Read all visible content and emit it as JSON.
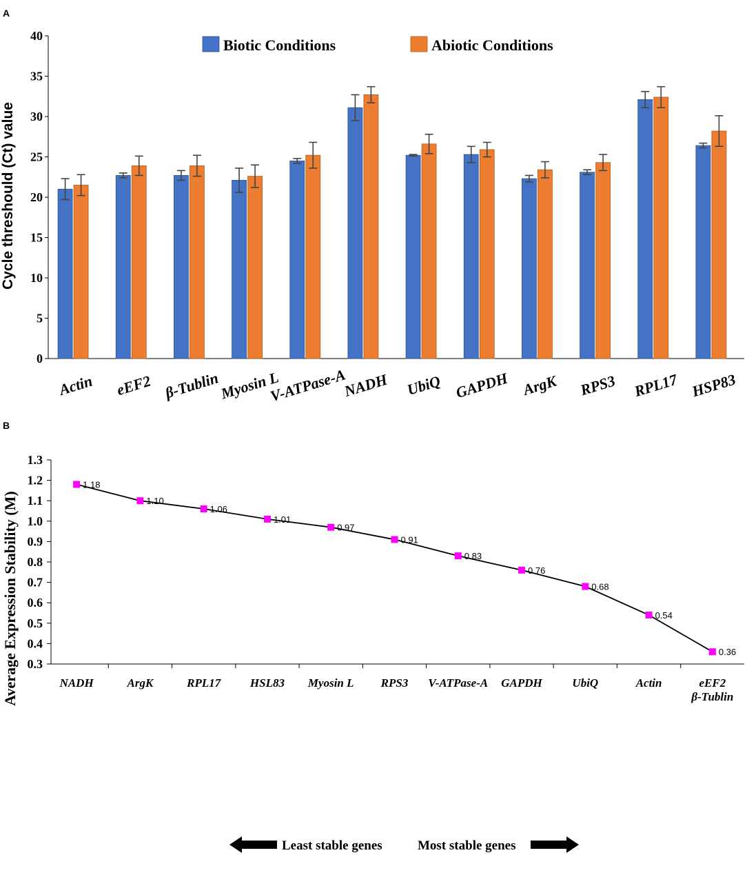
{
  "chart_data": [
    {
      "panel": "A",
      "type": "bar",
      "ylabel": "Cycle threshould (Ct) value",
      "ylim": [
        0,
        40
      ],
      "yticks": [
        0,
        5,
        10,
        15,
        20,
        25,
        30,
        35,
        40
      ],
      "categories": [
        "Actin",
        "eEF2",
        "β-Tublin",
        "Myosin L",
        "V-ATPase-A",
        "NADH",
        "UbiQ",
        "GAPDH",
        "ArgK",
        "RPS3",
        "RPL17",
        "HSP83"
      ],
      "series": [
        {
          "name": "Biotic Conditions",
          "color": "#4472C4",
          "values": [
            21.0,
            22.7,
            22.7,
            22.1,
            24.5,
            31.1,
            25.2,
            25.3,
            22.3,
            23.1,
            32.1,
            26.4
          ],
          "errors": [
            1.3,
            0.3,
            0.6,
            1.5,
            0.3,
            1.6,
            0.1,
            1.0,
            0.4,
            0.3,
            1.0,
            0.3
          ]
        },
        {
          "name": "Abiotic Conditions",
          "color": "#ED7D31",
          "values": [
            21.5,
            23.9,
            23.9,
            22.6,
            25.2,
            32.7,
            26.6,
            25.9,
            23.4,
            24.3,
            32.4,
            28.2
          ],
          "errors": [
            1.3,
            1.2,
            1.3,
            1.4,
            1.6,
            1.0,
            1.2,
            0.9,
            1.0,
            1.0,
            1.3,
            1.9
          ]
        }
      ]
    },
    {
      "panel": "B",
      "type": "line",
      "ylabel": "Average Expression Stability (M)",
      "ylim": [
        0.3,
        1.3
      ],
      "yticks": [
        "0.3",
        "0.4",
        "0.5",
        "0.6",
        "0.7",
        "0.8",
        "0.9",
        "1.0",
        "1.1",
        "1.2",
        "1.3"
      ],
      "categories": [
        [
          "NADH"
        ],
        [
          "ArgK"
        ],
        [
          "RPL17"
        ],
        [
          "HSL83"
        ],
        [
          "Myosin L"
        ],
        [
          "RPS3"
        ],
        [
          "V-ATPase-A"
        ],
        [
          "GAPDH"
        ],
        [
          "UbiQ"
        ],
        [
          "Actin"
        ],
        [
          "eEF2",
          "β-Tublin"
        ]
      ],
      "values": [
        1.18,
        1.1,
        1.06,
        1.01,
        0.97,
        0.91,
        0.83,
        0.76,
        0.68,
        0.54,
        0.36
      ],
      "labels": [
        "1.18",
        "1.10",
        "1.06",
        "1.01",
        "0.97",
        "0.91",
        "0.83",
        "0.76",
        "0.68",
        "0.54",
        "0.36"
      ],
      "marker_color": "#FF00FF",
      "line_color": "#000000",
      "arrows": {
        "left": "Least stable genes",
        "right": "Most stable genes"
      }
    }
  ],
  "panel_labels": {
    "a": "A",
    "b": "B"
  }
}
